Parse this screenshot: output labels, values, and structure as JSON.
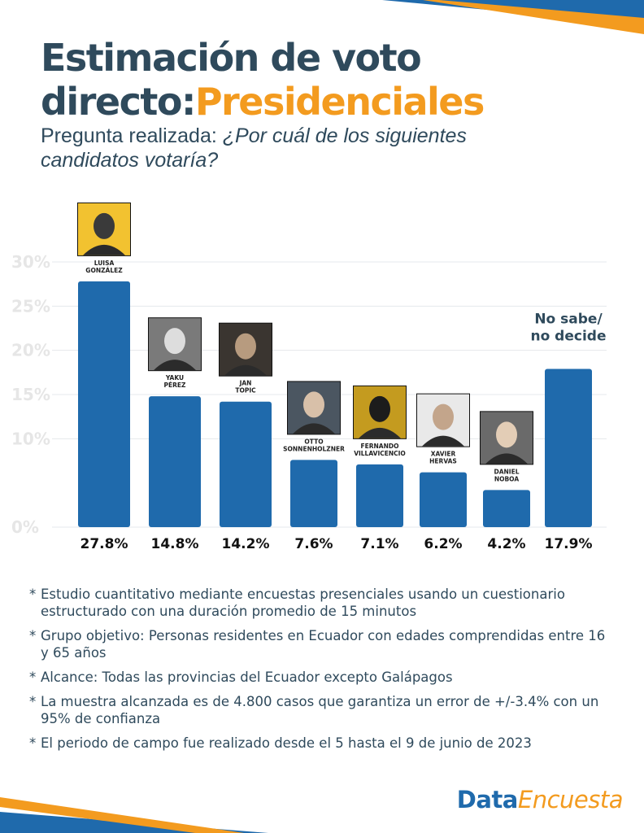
{
  "header": {
    "title_line1": "Estimación de voto",
    "title_line2_prefix": "directo:",
    "title_line2_accent": "Presidenciales",
    "subtitle_label": "Pregunta realizada:",
    "subtitle_question_1": "¿Por cuál de los siguientes",
    "subtitle_question_2": "candidatos votaría?"
  },
  "chart_data": {
    "type": "bar",
    "title": "Estimación de voto directo: Presidenciales",
    "xlabel": "",
    "ylabel": "",
    "ylim": [
      0,
      30
    ],
    "yticks": [
      "0%",
      "10%",
      "15%",
      "20%",
      "25%",
      "30%"
    ],
    "ytick_values": [
      0,
      10,
      15,
      20,
      25,
      30
    ],
    "grid": true,
    "categories": [
      {
        "line1": "LUISA",
        "line2": "GONZÁLEZ"
      },
      {
        "line1": "YAKU",
        "line2": "PÉREZ"
      },
      {
        "line1": "JAN",
        "line2": "TOPIC"
      },
      {
        "line1": "OTTO",
        "line2": "SONNENHOLZNER"
      },
      {
        "line1": "FERNANDO",
        "line2": "VILLAVICENCIO"
      },
      {
        "line1": "XAVIER",
        "line2": "HERVAS"
      },
      {
        "line1": "DANIEL",
        "line2": "NOBOA"
      },
      {
        "line1": "No sabe/",
        "line2": "no decide"
      }
    ],
    "values": [
      27.8,
      14.8,
      14.2,
      7.6,
      7.1,
      6.2,
      4.2,
      17.9
    ],
    "value_labels": [
      "27.8%",
      "14.8%",
      "14.2%",
      "7.6%",
      "7.1%",
      "6.2%",
      "4.2%",
      "17.9%"
    ],
    "bar_color": "#1f6aac"
  },
  "notes": [
    "Estudio cuantitativo mediante encuestas presenciales usando un cuestionario estructurado con una duración promedio de 15 minutos",
    "Grupo objetivo: Personas residentes en Ecuador con edades comprendidas entre 16 y 65 años",
    "Alcance: Todas las provincias del Ecuador excepto Galápagos",
    "La muestra alcanzada es de 4.800 casos que garantiza un error de +/-3.4% con un 95% de confianza",
    "El periodo de campo fue realizado desde el 5 hasta el 9 de junio de 2023"
  ],
  "brand": {
    "part1": "Data",
    "part2": "Encuesta"
  },
  "colors": {
    "primary": "#1f6aac",
    "accent": "#f39b1f",
    "text": "#2f4a5c"
  }
}
